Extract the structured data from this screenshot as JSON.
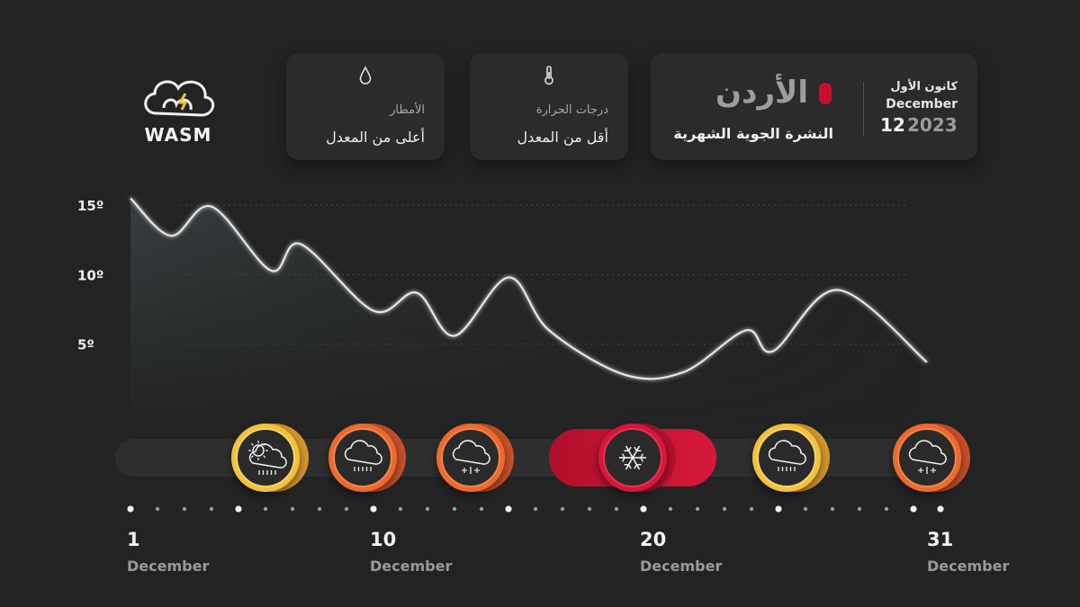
{
  "brand": {
    "name": "WASM"
  },
  "cards": {
    "rain": {
      "label": "الأمطار",
      "value": "أعلى من المعدل",
      "icon": "raindrop-icon"
    },
    "temperature": {
      "label": "درجات الحرارة",
      "value": "أقل من المعدل",
      "icon": "thermometer-icon"
    }
  },
  "header": {
    "country": "الأردن",
    "subtitle": "النشرة الجوية الشهرية",
    "month_ar": "كانون الأول",
    "month_en": "December",
    "month_num": "12",
    "year": "2023"
  },
  "colors": {
    "accent_red": "#c8102e",
    "orange": "#ec6a2f",
    "yellow": "#f3c03c"
  },
  "chart_data": {
    "type": "line",
    "title": "",
    "xlabel": "",
    "ylabel": "",
    "ylim": [
      0,
      16.5
    ],
    "xlim": [
      1,
      31
    ],
    "y_ticks": [
      {
        "value": 5,
        "label": "5º"
      },
      {
        "value": 10,
        "label": "10º"
      },
      {
        "value": 15,
        "label": "15º"
      }
    ],
    "x_ticks": [
      {
        "value": 1,
        "label": "1",
        "sub": "December"
      },
      {
        "value": 10,
        "label": "10",
        "sub": "December"
      },
      {
        "value": 20,
        "label": "20",
        "sub": "December"
      },
      {
        "value": 31,
        "label": "31",
        "sub": "December"
      }
    ],
    "grid": true,
    "series": [
      {
        "x": [
          1,
          2.5,
          4,
          6.2,
          7.3,
          10,
          11.6,
          13,
          15,
          16.5,
          19.3,
          21.5,
          23.8,
          24.8,
          27.2,
          30.5
        ],
        "y": [
          15.5,
          12.8,
          14.9,
          10.3,
          12.2,
          7.4,
          8.7,
          5.6,
          9.8,
          6.0,
          2.8,
          3.0,
          6.0,
          4.5,
          8.9,
          3.7
        ]
      }
    ],
    "weather_markers": [
      {
        "day": 6,
        "icon": "partly-cloudy-rain-icon",
        "color": "yellow"
      },
      {
        "day": 9.6,
        "icon": "cloud-rain-icon",
        "color": "orange"
      },
      {
        "day": 13.6,
        "icon": "cloud-snow-rain-icon",
        "color": "orange"
      },
      {
        "day": 19.6,
        "icon": "snowflake-icon",
        "color": "red"
      },
      {
        "day": 25.3,
        "icon": "cloud-rain-icon",
        "color": "yellow"
      },
      {
        "day": 30.5,
        "icon": "cloud-snow-rain-icon",
        "color": "orange"
      }
    ]
  }
}
